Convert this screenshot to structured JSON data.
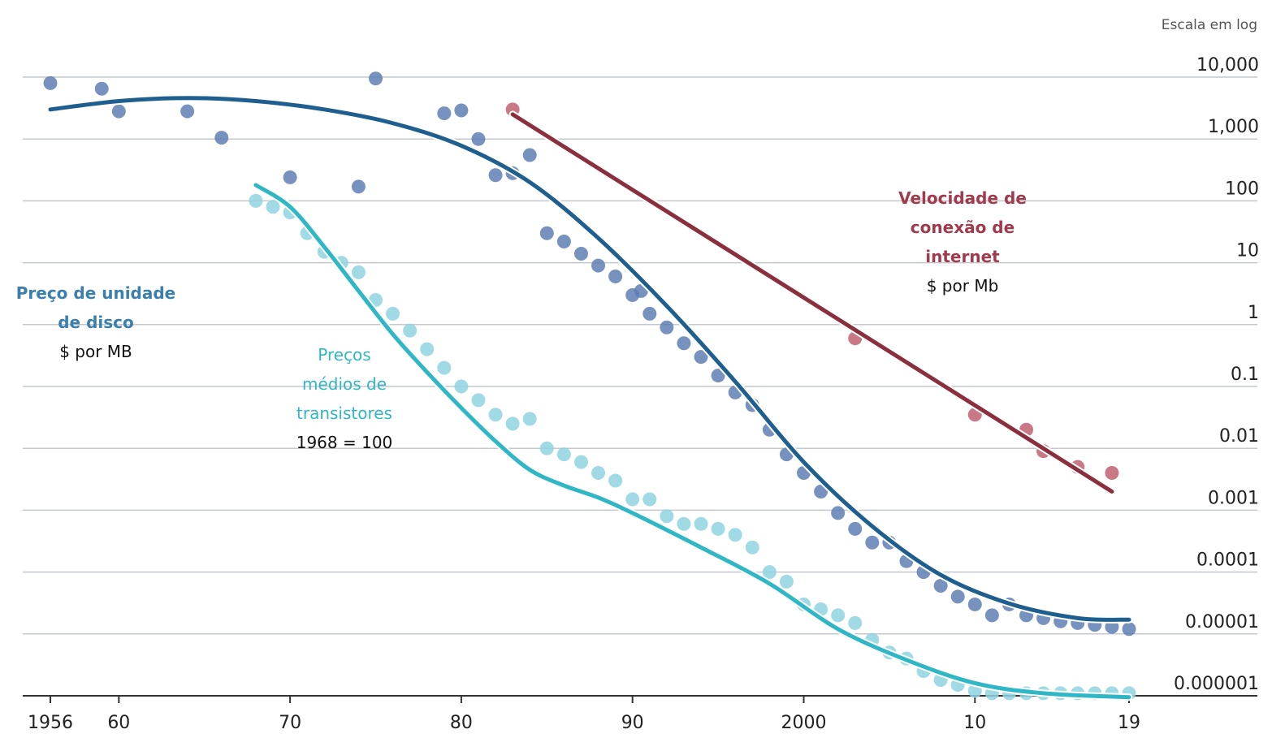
{
  "chart_data": {
    "type": "scatter",
    "scale_note": "Escala em log",
    "y_axis": {
      "scale": "log",
      "position": "right",
      "ylim": [
        1e-06,
        10000
      ],
      "tick_values": [
        10000,
        1000,
        100,
        10,
        1,
        0.1,
        0.01,
        0.001,
        0.0001,
        1e-05,
        1e-06
      ],
      "tick_labels": [
        "10,000",
        "1,000",
        "100",
        "10",
        "1",
        "0.1",
        "0.01",
        "0.001",
        "0.0001",
        "0.00001",
        "0.000001"
      ]
    },
    "x_axis": {
      "xlim": [
        1956,
        2019
      ],
      "tick_values": [
        1956,
        1960,
        1970,
        1980,
        1990,
        2000,
        2010,
        2019
      ],
      "tick_labels": [
        "1956",
        "60",
        "70",
        "80",
        "90",
        "2000",
        "10",
        "19"
      ]
    },
    "grid": true,
    "series": [
      {
        "name": "Preço de unidade de disco",
        "subtitle": "$ por MB",
        "color": "#1f5f8f",
        "point_color": "#5f7fb3",
        "points": [
          [
            1956,
            8000
          ],
          [
            1959,
            6500
          ],
          [
            1960,
            2800
          ],
          [
            1964,
            2800
          ],
          [
            1966,
            1050
          ],
          [
            1970,
            240
          ],
          [
            1974,
            170
          ],
          [
            1975,
            9500
          ],
          [
            1979,
            2600
          ],
          [
            1980,
            2900
          ],
          [
            1981,
            1000
          ],
          [
            1982,
            260
          ],
          [
            1983,
            280
          ],
          [
            1984,
            550
          ],
          [
            1985,
            30
          ],
          [
            1986,
            22
          ],
          [
            1987,
            14
          ],
          [
            1988,
            9
          ],
          [
            1989,
            6
          ],
          [
            1990,
            3
          ],
          [
            1990.5,
            3.5
          ],
          [
            1991,
            1.5
          ],
          [
            1992,
            0.9
          ],
          [
            1993,
            0.5
          ],
          [
            1994,
            0.3
          ],
          [
            1995,
            0.15
          ],
          [
            1996,
            0.08
          ],
          [
            1997,
            0.05
          ],
          [
            1998,
            0.02
          ],
          [
            1999,
            0.008
          ],
          [
            2000,
            0.004
          ],
          [
            2001,
            0.002
          ],
          [
            2002,
            0.0009
          ],
          [
            2003,
            0.0005
          ],
          [
            2004,
            0.0003
          ],
          [
            2005,
            0.0003
          ],
          [
            2006,
            0.00015
          ],
          [
            2007,
            0.0001
          ],
          [
            2008,
            6e-05
          ],
          [
            2009,
            4e-05
          ],
          [
            2010,
            3e-05
          ],
          [
            2011,
            2e-05
          ],
          [
            2012,
            3e-05
          ],
          [
            2013,
            2e-05
          ],
          [
            2014,
            1.8e-05
          ],
          [
            2015,
            1.6e-05
          ],
          [
            2016,
            1.5e-05
          ],
          [
            2017,
            1.4e-05
          ],
          [
            2018,
            1.3e-05
          ],
          [
            2019,
            1.2e-05
          ]
        ],
        "fit": [
          [
            1956,
            3000
          ],
          [
            1960,
            4100
          ],
          [
            1964,
            4600
          ],
          [
            1968,
            4100
          ],
          [
            1972,
            3000
          ],
          [
            1976,
            1800
          ],
          [
            1980,
            780
          ],
          [
            1984,
            200
          ],
          [
            1988,
            25
          ],
          [
            1992,
            2
          ],
          [
            1996,
            0.12
          ],
          [
            2000,
            0.006
          ],
          [
            2004,
            0.00055
          ],
          [
            2008,
            9e-05
          ],
          [
            2012,
            3.1e-05
          ],
          [
            2016,
            1.8e-05
          ],
          [
            2019,
            1.7e-05
          ]
        ]
      },
      {
        "name": "Preços médios de transistores",
        "subtitle": "1968 = 100",
        "color": "#2fb7c6",
        "point_color": "#8fd3df",
        "points": [
          [
            1968,
            100
          ],
          [
            1969,
            80
          ],
          [
            1970,
            65
          ],
          [
            1971,
            30
          ],
          [
            1972,
            15
          ],
          [
            1973,
            10
          ],
          [
            1974,
            7
          ],
          [
            1975,
            2.5
          ],
          [
            1976,
            1.5
          ],
          [
            1977,
            0.8
          ],
          [
            1978,
            0.4
          ],
          [
            1979,
            0.2
          ],
          [
            1980,
            0.1
          ],
          [
            1981,
            0.06
          ],
          [
            1982,
            0.035
          ],
          [
            1983,
            0.025
          ],
          [
            1984,
            0.03
          ],
          [
            1985,
            0.01
          ],
          [
            1986,
            0.008
          ],
          [
            1987,
            0.006
          ],
          [
            1988,
            0.004
          ],
          [
            1989,
            0.003
          ],
          [
            1990,
            0.0015
          ],
          [
            1991,
            0.0015
          ],
          [
            1992,
            0.0008
          ],
          [
            1993,
            0.0006
          ],
          [
            1994,
            0.0006
          ],
          [
            1995,
            0.0005
          ],
          [
            1996,
            0.0004
          ],
          [
            1997,
            0.00025
          ],
          [
            1998,
            0.0001
          ],
          [
            1999,
            7e-05
          ],
          [
            2000,
            3e-05
          ],
          [
            2001,
            2.5e-05
          ],
          [
            2002,
            2e-05
          ],
          [
            2003,
            1.5e-05
          ],
          [
            2004,
            8e-06
          ],
          [
            2005,
            5e-06
          ],
          [
            2006,
            4e-06
          ],
          [
            2007,
            2.5e-06
          ],
          [
            2008,
            1.8e-06
          ],
          [
            2009,
            1.5e-06
          ],
          [
            2010,
            1.2e-06
          ],
          [
            2011,
            1.1e-06
          ],
          [
            2012,
            1.1e-06
          ],
          [
            2013,
            1.1e-06
          ],
          [
            2014,
            1.1e-06
          ],
          [
            2015,
            1.1e-06
          ],
          [
            2016,
            1.1e-06
          ],
          [
            2017,
            1.1e-06
          ],
          [
            2018,
            1.1e-06
          ],
          [
            2019,
            1.1e-06
          ]
        ],
        "fit": [
          [
            1968,
            180
          ],
          [
            1970,
            80
          ],
          [
            1972,
            18
          ],
          [
            1974,
            3.5
          ],
          [
            1976,
            0.7
          ],
          [
            1978,
            0.17
          ],
          [
            1980,
            0.045
          ],
          [
            1982,
            0.013
          ],
          [
            1984,
            0.0045
          ],
          [
            1986,
            0.0025
          ],
          [
            1988,
            0.0016
          ],
          [
            1990,
            0.0009
          ],
          [
            1994,
            0.00025
          ],
          [
            1998,
            6.5e-05
          ],
          [
            2002,
            1.2e-05
          ],
          [
            2006,
            3.8e-06
          ],
          [
            2010,
            1.6e-06
          ],
          [
            2014,
            1.1e-06
          ],
          [
            2019,
            9.5e-07
          ]
        ]
      },
      {
        "name": "Velocidade de conexão de internet",
        "subtitle": "$ por Mb",
        "color": "#8b2f3e",
        "point_color": "#c06070",
        "points": [
          [
            1983,
            3000
          ],
          [
            2003,
            0.6
          ],
          [
            2010,
            0.035
          ],
          [
            2013,
            0.02
          ],
          [
            2014,
            0.009
          ],
          [
            2016,
            0.005
          ],
          [
            2018,
            0.004
          ]
        ],
        "fit": [
          [
            1983,
            2500
          ],
          [
            2018,
            0.002
          ]
        ]
      }
    ]
  }
}
